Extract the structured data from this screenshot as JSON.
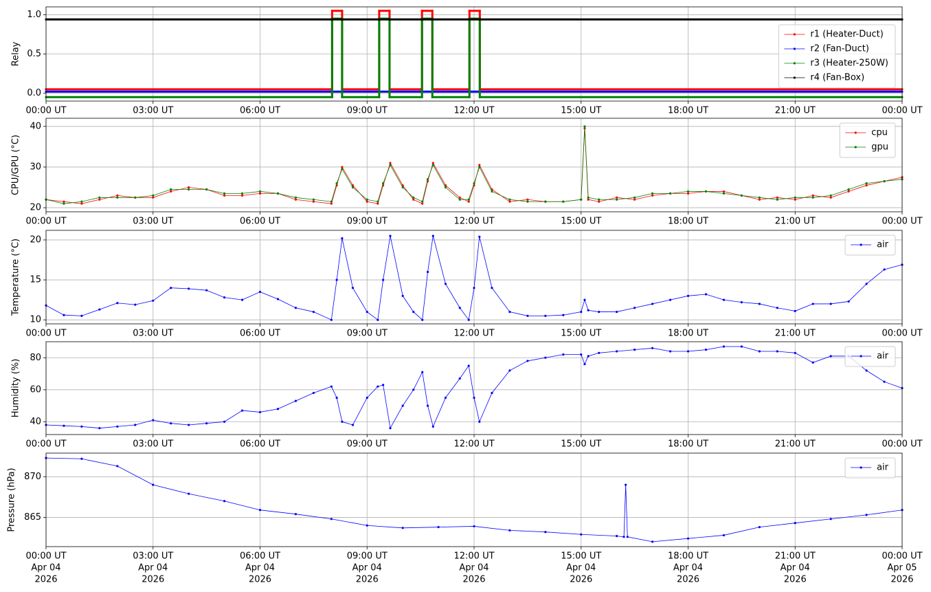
{
  "chart_data": [
    {
      "type": "line",
      "y_label": "Relay",
      "xlim": [
        0,
        24
      ],
      "ylim": [
        -0.1,
        1.1
      ],
      "xticks": [
        {
          "value": 0,
          "label": "00:00 UT"
        },
        {
          "value": 3,
          "label": "03:00 UT"
        },
        {
          "value": 6,
          "label": "06:00 UT"
        },
        {
          "value": 9,
          "label": "09:00 UT"
        },
        {
          "value": 12,
          "label": "12:00 UT"
        },
        {
          "value": 15,
          "label": "15:00 UT"
        },
        {
          "value": 18,
          "label": "18:00 UT"
        },
        {
          "value": 21,
          "label": "21:00 UT"
        },
        {
          "value": 24,
          "label": "00:00 UT"
        }
      ],
      "yticks": [
        {
          "value": 0,
          "label": "0.0"
        },
        {
          "value": 0.5,
          "label": "0.5"
        },
        {
          "value": 1,
          "label": "1.0"
        }
      ],
      "grid": true,
      "legend": "upper right",
      "x": [
        0,
        8.02,
        8.02,
        8.3,
        8.3,
        9.34,
        9.34,
        9.63,
        9.63,
        10.54,
        10.54,
        10.83,
        10.83,
        11.87,
        11.87,
        12.16,
        12.16,
        24
      ],
      "series": [
        {
          "name": "r1 (Heater-Duct)",
          "color": "#ff0000",
          "values": [
            0.05,
            0.05,
            1.05,
            1.05,
            0.05,
            0.05,
            1.05,
            1.05,
            0.05,
            0.05,
            1.05,
            1.05,
            0.05,
            0.05,
            1.05,
            1.05,
            0.05,
            0.05
          ]
        },
        {
          "name": "r2 (Fan-Duct)",
          "color": "#0000ff",
          "values": [
            0.02,
            0.02,
            0.02,
            0.02,
            0.02,
            0.02,
            0.02,
            0.02,
            0.02,
            0.02,
            0.02,
            0.02,
            0.02,
            0.02,
            0.02,
            0.02,
            0.02,
            0.02
          ]
        },
        {
          "name": "r3 (Heater-250W)",
          "color": "#008000",
          "values": [
            -0.05,
            -0.05,
            0.95,
            0.95,
            -0.05,
            -0.05,
            0.95,
            0.95,
            -0.05,
            -0.05,
            0.95,
            0.95,
            -0.05,
            -0.05,
            0.95,
            0.95,
            -0.05,
            -0.05
          ]
        },
        {
          "name": "r4 (Fan-Box)",
          "color": "#000000",
          "values": [
            0.94,
            0.94,
            0.94,
            0.94,
            0.94,
            0.94,
            0.94,
            0.94,
            0.94,
            0.94,
            0.94,
            0.94,
            0.94,
            0.94,
            0.94,
            0.94,
            0.94,
            0.94
          ]
        }
      ]
    },
    {
      "type": "line",
      "y_label": "CPU/GPU (°C)",
      "xlim": [
        0,
        24
      ],
      "ylim": [
        19,
        42
      ],
      "xticks": [
        {
          "value": 0,
          "label": "00:00 UT"
        },
        {
          "value": 3,
          "label": "03:00 UT"
        },
        {
          "value": 6,
          "label": "06:00 UT"
        },
        {
          "value": 9,
          "label": "09:00 UT"
        },
        {
          "value": 12,
          "label": "12:00 UT"
        },
        {
          "value": 15,
          "label": "15:00 UT"
        },
        {
          "value": 18,
          "label": "18:00 UT"
        },
        {
          "value": 21,
          "label": "21:00 UT"
        },
        {
          "value": 24,
          "label": "00:00 UT"
        }
      ],
      "yticks": [
        20,
        30,
        40
      ],
      "grid": true,
      "legend": "upper right",
      "x": [
        0,
        0.5,
        1,
        1.5,
        2,
        2.5,
        3,
        3.5,
        4,
        4.5,
        5,
        5.5,
        6,
        6.5,
        7,
        7.5,
        8.0,
        8.15,
        8.3,
        8.6,
        9.0,
        9.3,
        9.45,
        9.65,
        10.0,
        10.3,
        10.55,
        10.7,
        10.85,
        11.2,
        11.6,
        11.85,
        12.0,
        12.15,
        12.5,
        13,
        13.5,
        14,
        14.5,
        15.0,
        15.1,
        15.2,
        15.5,
        16,
        16.5,
        17,
        17.5,
        18,
        18.5,
        19,
        19.5,
        20,
        20.5,
        21,
        21.5,
        22,
        22.5,
        23,
        23.5,
        24
      ],
      "series": [
        {
          "name": "cpu",
          "color": "#ff0000",
          "values": [
            22,
            21.5,
            21,
            22,
            23,
            22.5,
            22.5,
            24,
            25,
            24.5,
            23,
            23,
            23.5,
            23.5,
            22,
            21.5,
            21,
            25.5,
            30,
            25.5,
            21.5,
            21,
            25.5,
            31,
            25.5,
            22,
            21,
            26.5,
            31,
            25.5,
            22.5,
            21.5,
            25.5,
            30.5,
            24.5,
            21.5,
            22,
            21.5,
            21.5,
            22,
            39.5,
            22,
            21.5,
            22.5,
            22,
            23,
            23.5,
            23.5,
            24,
            24,
            23,
            22,
            22.5,
            22,
            23,
            22.5,
            24,
            25.5,
            26.5,
            27.5
          ]
        },
        {
          "name": "gpu",
          "color": "#008000",
          "values": [
            22,
            21,
            21.5,
            22.5,
            22.5,
            22.5,
            23,
            24.5,
            24.5,
            24.5,
            23.5,
            23.5,
            24,
            23.5,
            22.5,
            22,
            21.5,
            26,
            29.5,
            25,
            22,
            21.5,
            26,
            30.5,
            25,
            22.5,
            21.5,
            27,
            30.5,
            25,
            22,
            22,
            26,
            30,
            24,
            22,
            21.5,
            21.5,
            21.5,
            22,
            40,
            22.5,
            22,
            22,
            22.5,
            23.5,
            23.5,
            24,
            24,
            23.5,
            23,
            22.5,
            22,
            22.5,
            22.5,
            23,
            24.5,
            26,
            26.5,
            27
          ]
        }
      ]
    },
    {
      "type": "line",
      "y_label": "Temperature (°C)",
      "xlim": [
        0,
        24
      ],
      "ylim": [
        9.5,
        21.2
      ],
      "xticks": [
        {
          "value": 0,
          "label": "00:00 UT"
        },
        {
          "value": 3,
          "label": "03:00 UT"
        },
        {
          "value": 6,
          "label": "06:00 UT"
        },
        {
          "value": 9,
          "label": "09:00 UT"
        },
        {
          "value": 12,
          "label": "12:00 UT"
        },
        {
          "value": 15,
          "label": "15:00 UT"
        },
        {
          "value": 18,
          "label": "18:00 UT"
        },
        {
          "value": 21,
          "label": "21:00 UT"
        },
        {
          "value": 24,
          "label": "00:00 UT"
        }
      ],
      "yticks": [
        10,
        15,
        20
      ],
      "grid": true,
      "legend": "upper right",
      "x": [
        0,
        0.5,
        1,
        1.5,
        2,
        2.5,
        3,
        3.5,
        4,
        4.5,
        5,
        5.5,
        6,
        6.5,
        7,
        7.5,
        8.0,
        8.15,
        8.3,
        8.6,
        9.0,
        9.3,
        9.45,
        9.65,
        10.0,
        10.3,
        10.55,
        10.7,
        10.85,
        11.2,
        11.6,
        11.85,
        12.0,
        12.15,
        12.5,
        13,
        13.5,
        14,
        14.5,
        15.0,
        15.1,
        15.2,
        15.5,
        16,
        16.5,
        17,
        17.5,
        18,
        18.5,
        19,
        19.5,
        20,
        20.5,
        21,
        21.5,
        22,
        22.5,
        23,
        23.5,
        24
      ],
      "series": [
        {
          "name": "air",
          "color": "#0000ff",
          "values": [
            11.8,
            10.6,
            10.5,
            11.3,
            12.1,
            11.9,
            12.4,
            14.0,
            13.9,
            13.7,
            12.8,
            12.5,
            13.5,
            12.6,
            11.5,
            11.0,
            10.0,
            15.0,
            20.2,
            14.0,
            11.0,
            10.0,
            15.0,
            20.5,
            13.0,
            11.0,
            10.0,
            16.0,
            20.5,
            14.5,
            11.5,
            10.0,
            14.0,
            20.4,
            14.0,
            11.0,
            10.5,
            10.5,
            10.6,
            11.0,
            12.5,
            11.2,
            11.0,
            11.0,
            11.5,
            12.0,
            12.5,
            13.0,
            13.2,
            12.5,
            12.2,
            12.0,
            11.5,
            11.1,
            12.0,
            12.0,
            12.3,
            14.5,
            16.3,
            16.9
          ]
        }
      ]
    },
    {
      "type": "line",
      "y_label": "Humidity (%)",
      "xlim": [
        0,
        24
      ],
      "ylim": [
        32,
        90
      ],
      "xticks": [
        {
          "value": 0,
          "label": "00:00 UT"
        },
        {
          "value": 3,
          "label": "03:00 UT"
        },
        {
          "value": 6,
          "label": "06:00 UT"
        },
        {
          "value": 9,
          "label": "09:00 UT"
        },
        {
          "value": 12,
          "label": "12:00 UT"
        },
        {
          "value": 15,
          "label": "15:00 UT"
        },
        {
          "value": 18,
          "label": "18:00 UT"
        },
        {
          "value": 21,
          "label": "21:00 UT"
        },
        {
          "value": 24,
          "label": "00:00 UT"
        }
      ],
      "yticks": [
        40,
        60,
        80
      ],
      "grid": true,
      "legend": "upper right",
      "x": [
        0,
        0.5,
        1,
        1.5,
        2,
        2.5,
        3,
        3.5,
        4,
        4.5,
        5,
        5.5,
        6,
        6.5,
        7,
        7.5,
        8.0,
        8.15,
        8.3,
        8.6,
        9.0,
        9.3,
        9.45,
        9.65,
        10.0,
        10.3,
        10.55,
        10.7,
        10.85,
        11.2,
        11.6,
        11.85,
        12.0,
        12.15,
        12.5,
        13,
        13.5,
        14,
        14.5,
        15.0,
        15.1,
        15.2,
        15.5,
        16,
        16.5,
        17,
        17.5,
        18,
        18.5,
        19,
        19.5,
        20,
        20.5,
        21,
        21.5,
        22,
        22.5,
        23,
        23.5,
        24
      ],
      "series": [
        {
          "name": "air",
          "color": "#0000ff",
          "values": [
            38,
            37.5,
            37,
            36,
            37,
            38,
            41,
            39,
            38,
            39,
            40,
            47,
            46,
            48,
            53,
            58,
            62,
            55,
            40,
            38,
            55,
            62,
            63,
            36,
            50,
            60,
            71,
            50,
            37,
            55,
            67,
            75,
            55,
            40,
            58,
            72,
            78,
            80,
            82,
            82,
            76,
            81,
            83,
            84,
            85,
            86,
            84,
            84,
            85,
            87,
            87,
            84,
            84,
            83,
            77,
            81,
            81,
            72,
            65,
            61
          ]
        }
      ]
    },
    {
      "type": "line",
      "y_label": "Pressure (hPa)",
      "xlim": [
        0,
        24
      ],
      "ylim": [
        861.4,
        872.9
      ],
      "xticks": [
        {
          "value": 0,
          "label": [
            "00:00 UT",
            "Apr 04",
            "2026"
          ]
        },
        {
          "value": 3,
          "label": [
            "03:00 UT",
            "Apr 04",
            "2026"
          ]
        },
        {
          "value": 6,
          "label": [
            "06:00 UT",
            "Apr 04",
            "2026"
          ]
        },
        {
          "value": 9,
          "label": [
            "09:00 UT",
            "Apr 04",
            "2026"
          ]
        },
        {
          "value": 12,
          "label": [
            "12:00 UT",
            "Apr 04",
            "2026"
          ]
        },
        {
          "value": 15,
          "label": [
            "15:00 UT",
            "Apr 04",
            "2026"
          ]
        },
        {
          "value": 18,
          "label": [
            "18:00 UT",
            "Apr 04",
            "2026"
          ]
        },
        {
          "value": 21,
          "label": [
            "21:00 UT",
            "Apr 04",
            "2026"
          ]
        },
        {
          "value": 24,
          "label": [
            "00:00 UT",
            "Apr 05",
            "2026"
          ]
        }
      ],
      "yticks": [
        865,
        870
      ],
      "grid": true,
      "legend": "upper right",
      "x": [
        0,
        1,
        2,
        3,
        4,
        5,
        6,
        7,
        8,
        9,
        10,
        11,
        12,
        13,
        14,
        15,
        16,
        16.2,
        16.25,
        16.3,
        17,
        18,
        19,
        20,
        21,
        22,
        23,
        24
      ],
      "series": [
        {
          "name": "air",
          "color": "#0000ff",
          "values": [
            872.3,
            872.2,
            871.3,
            869.0,
            867.9,
            867.0,
            865.9,
            865.4,
            864.8,
            864.0,
            863.7,
            863.8,
            863.9,
            863.4,
            863.2,
            862.9,
            862.7,
            862.6,
            869.0,
            862.6,
            862.0,
            862.4,
            862.8,
            863.8,
            864.3,
            864.8,
            865.3,
            865.9
          ]
        }
      ]
    }
  ]
}
